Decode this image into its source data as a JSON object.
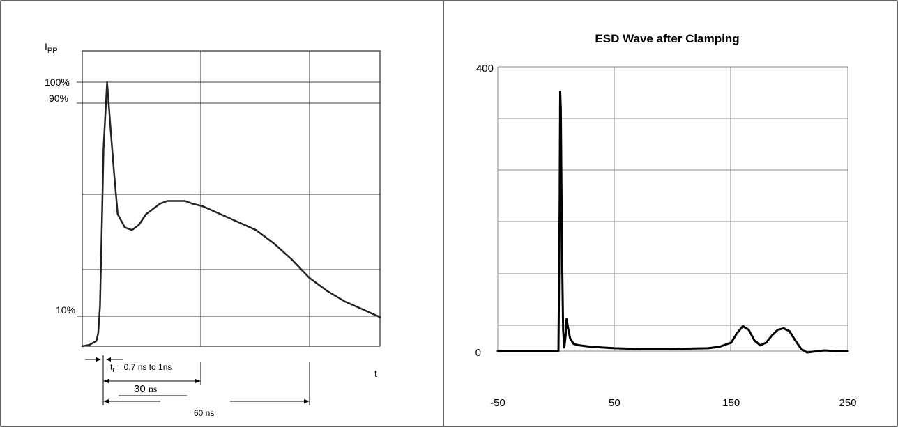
{
  "chart_data": [
    {
      "type": "line",
      "title": "",
      "ylabel": "I",
      "ylabel_sub": "PP",
      "xlabel": "t",
      "y_ticks": [
        "100%",
        "90%",
        "10%"
      ],
      "series": [
        {
          "x": [
            -4,
            -2,
            0,
            0.5,
            1,
            1.5,
            2,
            3,
            4,
            5,
            6,
            8,
            10,
            12,
            14,
            16,
            18,
            20,
            22,
            25,
            27,
            30,
            35,
            40,
            45,
            50,
            55,
            60,
            65,
            70,
            75,
            80
          ],
          "y": [
            0,
            0.5,
            2,
            5,
            15,
            45,
            75,
            100,
            82,
            65,
            50,
            45,
            44,
            46,
            50,
            52,
            54,
            55,
            55,
            55,
            54,
            53,
            50,
            47,
            44,
            39,
            33,
            26,
            21,
            17,
            14,
            11
          ]
        }
      ],
      "annotations": {
        "rise_time": "t",
        "rise_time_sub": "r",
        "rise_time_value": "= 0.7 ns to 1ns",
        "t30_num": "30",
        "t30_unit": "ns",
        "t60": "60 ns"
      }
    },
    {
      "type": "line",
      "title": "ESD Wave after Clamping",
      "xlabel": "",
      "ylabel": "",
      "xlim": [
        -50,
        250
      ],
      "ylim": [
        -20,
        400
      ],
      "x_ticks": [
        "-50",
        "50",
        "150",
        "250"
      ],
      "y_ticks": [
        "400",
        "0"
      ],
      "grid": true,
      "series": [
        {
          "x": [
            -50,
            0,
            2,
            3,
            3.5,
            4,
            5,
            6,
            7,
            8,
            9,
            10,
            12,
            15,
            20,
            30,
            50,
            70,
            100,
            130,
            140,
            150,
            155,
            160,
            165,
            170,
            175,
            180,
            185,
            190,
            195,
            200,
            205,
            210,
            215,
            220,
            225,
            230,
            240,
            250
          ],
          "y": [
            0,
            0,
            0,
            200,
            365,
            340,
            150,
            30,
            5,
            20,
            45,
            35,
            18,
            10,
            8,
            6,
            4,
            3,
            3,
            4,
            6,
            12,
            25,
            35,
            30,
            15,
            8,
            12,
            22,
            30,
            32,
            28,
            15,
            3,
            -2,
            -1,
            0,
            1,
            0,
            0
          ]
        }
      ]
    }
  ]
}
